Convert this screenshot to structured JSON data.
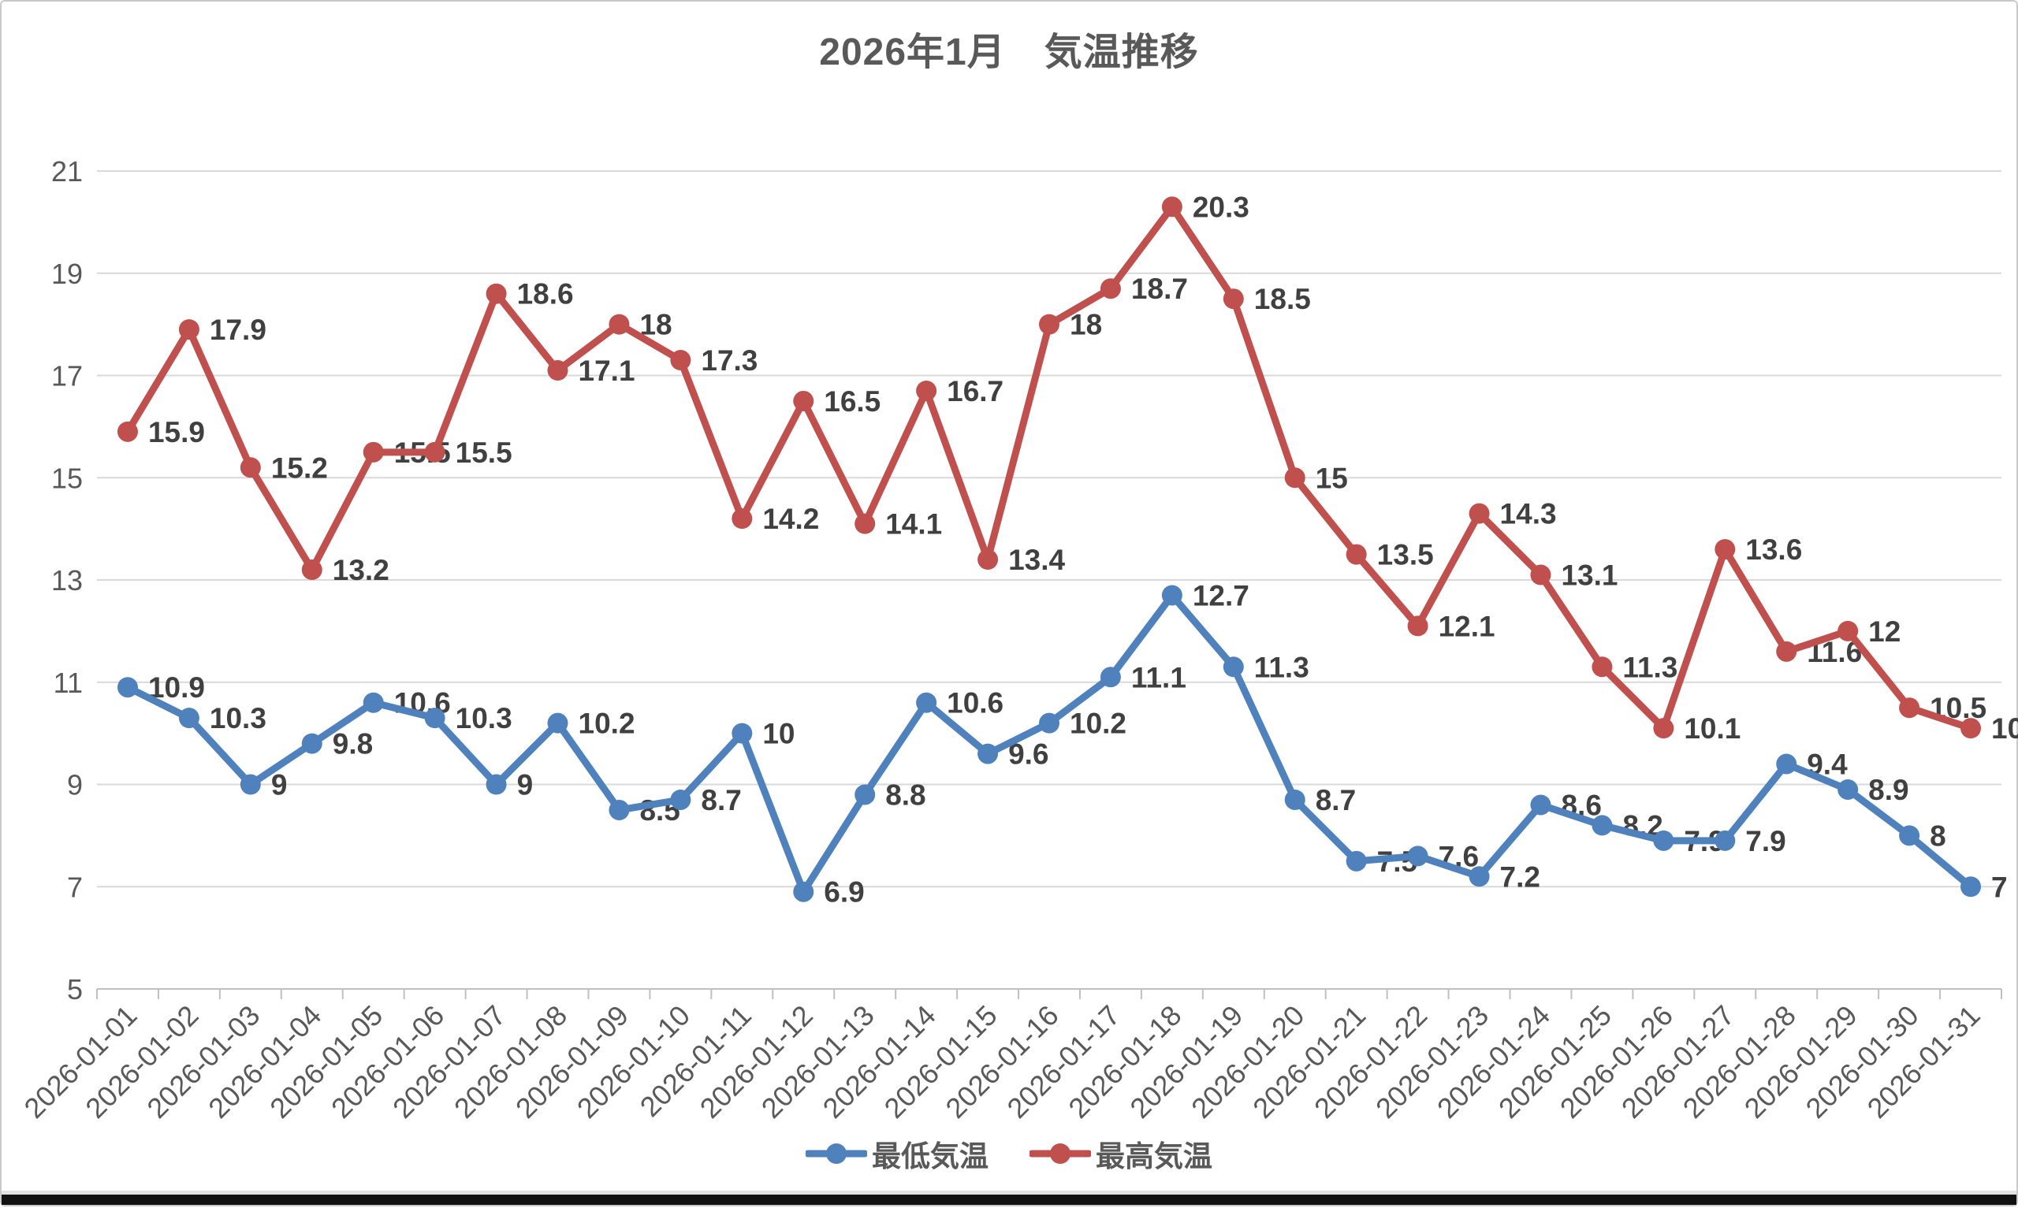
{
  "chart_data": {
    "type": "line",
    "title": "2026年1月　気温推移",
    "categories": [
      "2026-01-01",
      "2026-01-02",
      "2026-01-03",
      "2026-01-04",
      "2026-01-05",
      "2026-01-06",
      "2026-01-07",
      "2026-01-08",
      "2026-01-09",
      "2026-01-10",
      "2026-01-11",
      "2026-01-12",
      "2026-01-13",
      "2026-01-14",
      "2026-01-15",
      "2026-01-16",
      "2026-01-17",
      "2026-01-18",
      "2026-01-19",
      "2026-01-20",
      "2026-01-21",
      "2026-01-22",
      "2026-01-23",
      "2026-01-24",
      "2026-01-25",
      "2026-01-26",
      "2026-01-27",
      "2026-01-28",
      "2026-01-29",
      "2026-01-30",
      "2026-01-31"
    ],
    "series": [
      {
        "name": "最低気温",
        "color": "#4F81BD",
        "values": [
          10.9,
          10.3,
          9,
          9.8,
          10.6,
          10.3,
          9,
          10.2,
          8.5,
          8.7,
          10,
          6.9,
          8.8,
          10.6,
          9.6,
          10.2,
          11.1,
          12.7,
          11.3,
          8.7,
          7.5,
          7.6,
          7.2,
          8.6,
          8.2,
          7.9,
          7.9,
          9.4,
          8.9,
          8,
          7
        ]
      },
      {
        "name": "最高気温",
        "color": "#C0504D",
        "values": [
          15.9,
          17.9,
          15.2,
          13.2,
          15.5,
          15.5,
          18.6,
          17.1,
          18,
          17.3,
          14.2,
          16.5,
          14.1,
          16.7,
          13.4,
          18,
          18.7,
          20.3,
          18.5,
          15,
          13.5,
          12.1,
          14.3,
          13.1,
          11.3,
          10.1,
          13.6,
          11.6,
          12,
          10.5,
          10.1
        ]
      }
    ],
    "ylim": [
      5,
      21
    ],
    "yticks": [
      5,
      7,
      9,
      11,
      13,
      15,
      17,
      19,
      21
    ],
    "grid": true,
    "data_labels": true,
    "legend_position": "bottom",
    "xlabel": "",
    "ylabel": "",
    "colors": {
      "gridline": "#D9D9D9",
      "axis_line": "#C0C0C0",
      "axis_text": "#595959",
      "label_text": "#404040"
    }
  }
}
